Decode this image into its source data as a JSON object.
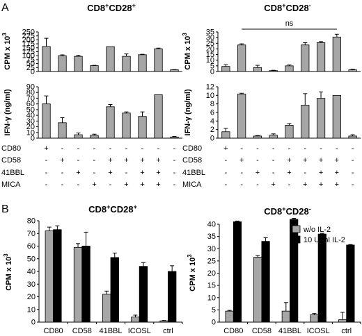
{
  "panel_labels": {
    "A": "A",
    "B": "B"
  },
  "colors": {
    "gray": "#a6a6a6",
    "black": "#000000",
    "axis": "#000000"
  },
  "conditions": {
    "rows": [
      "CD80",
      "CD58",
      "41BBL",
      "MICA"
    ],
    "marks": [
      [
        "+",
        "-",
        "-",
        "-",
        "-",
        "-",
        "-",
        "-",
        "-"
      ],
      [
        "-",
        "+",
        "-",
        "-",
        "+",
        "+",
        "+",
        "+",
        "-"
      ],
      [
        "-",
        "-",
        "+",
        "-",
        "+",
        "-",
        "+",
        "+",
        "-"
      ],
      [
        "-",
        "-",
        "-",
        "+",
        "-",
        "+",
        "+",
        "+",
        "-"
      ]
    ]
  },
  "chart_data": [
    {
      "id": "A1",
      "type": "bar",
      "title": "CD8+CD28+",
      "title_main": "CD8",
      "title_sup1": "+",
      "title_mid": "CD28",
      "title_sup2": "+",
      "ylabel": "CPM x 10",
      "ylabel_sup": "3",
      "yticks": [
        0,
        25,
        50,
        75,
        100,
        125,
        150,
        175,
        200,
        225,
        250
      ],
      "ylim": [
        0,
        250
      ],
      "values": [
        158,
        100,
        96,
        37,
        157,
        96,
        106,
        144,
        11
      ],
      "errors": [
        52,
        5,
        6,
        2,
        0,
        15,
        3,
        4,
        1
      ]
    },
    {
      "id": "A2",
      "type": "bar",
      "title": "CD8+CD28-",
      "title_main": "CD8",
      "title_sup1": "+",
      "title_mid": "CD28",
      "title_sup2": "-",
      "ylabel": "CPM x 10",
      "ylabel_sup": "3",
      "yticks": [
        0,
        5,
        10,
        15,
        20,
        25,
        30,
        35
      ],
      "ylim": [
        0,
        35
      ],
      "values": [
        4.5,
        23.5,
        3.5,
        0.8,
        5,
        23.5,
        25.5,
        30.5,
        1.5
      ],
      "errors": [
        1.5,
        1,
        2,
        0.3,
        0.8,
        2,
        1,
        2.5,
        0.5
      ],
      "annotation": "ns"
    },
    {
      "id": "A3",
      "type": "bar",
      "ylabel": "IFN-γ (ng/ml)",
      "yticks": [
        0,
        10,
        20,
        30,
        40,
        50,
        60,
        70,
        80,
        90
      ],
      "ylim": [
        0,
        90
      ],
      "values": [
        60,
        27,
        6,
        5,
        55,
        44,
        38,
        76,
        2
      ],
      "errors": [
        14,
        9,
        3,
        2,
        4,
        2,
        8,
        0,
        1
      ]
    },
    {
      "id": "A4",
      "type": "bar",
      "ylabel": "IFN-γ (ng/ml)",
      "yticks": [
        0,
        2,
        4,
        6,
        8,
        10,
        12
      ],
      "ylim": [
        0,
        12
      ],
      "values": [
        1.5,
        10.3,
        0.5,
        0.7,
        3,
        7.7,
        9.3,
        10,
        0.5
      ],
      "errors": [
        0.8,
        0.2,
        0.1,
        0.3,
        0.4,
        2.7,
        1.5,
        0,
        0.3
      ]
    },
    {
      "id": "B1",
      "type": "bar",
      "title": "CD8+CD28+",
      "title_main": "CD8",
      "title_sup1": "+",
      "title_mid": "CD28",
      "title_sup2": "+",
      "ylabel": "CPM x 10",
      "ylabel_sup": "3",
      "yticks": [
        0,
        10,
        20,
        30,
        40,
        50,
        60,
        70,
        80
      ],
      "ylim": [
        0,
        80
      ],
      "categories": [
        "CD80",
        "CD58",
        "41BBL",
        "ICOSL",
        "ctrl"
      ],
      "series": [
        {
          "name": "w/o IL-2",
          "values": [
            72,
            59,
            22,
            4,
            1
          ],
          "errors": [
            3,
            3,
            2.5,
            1.5,
            0.3
          ]
        },
        {
          "name": "10 U/ml IL-2",
          "values": [
            73,
            60,
            51,
            44,
            40
          ],
          "errors": [
            3,
            11,
            3.5,
            3,
            4.5
          ]
        }
      ]
    },
    {
      "id": "B2",
      "type": "bar",
      "title": "CD8+CD28-",
      "title_main": "CD8",
      "title_sup1": "+",
      "title_mid": "CD28",
      "title_sup2": "-",
      "ylabel": "CPM x 10",
      "ylabel_sup": "3",
      "yticks": [
        0,
        5,
        10,
        15,
        20,
        25,
        30,
        35,
        40
      ],
      "ylim": [
        0,
        40
      ],
      "categories": [
        "CD80",
        "CD58",
        "41BBL",
        "ICOSL",
        "ctrl"
      ],
      "legend": [
        "w/o IL-2",
        "10 U/ml IL-2"
      ],
      "series": [
        {
          "name": "w/o IL-2",
          "values": [
            4.5,
            26.5,
            4.5,
            3,
            1
          ],
          "errors": [
            0.3,
            0.7,
            3.5,
            0.5,
            3
          ]
        },
        {
          "name": "10 U/ml IL-2",
          "values": [
            41,
            33,
            42,
            36,
            31.5
          ],
          "errors": [
            0.3,
            1.5,
            0.4,
            0.3,
            0.2
          ]
        }
      ]
    }
  ]
}
